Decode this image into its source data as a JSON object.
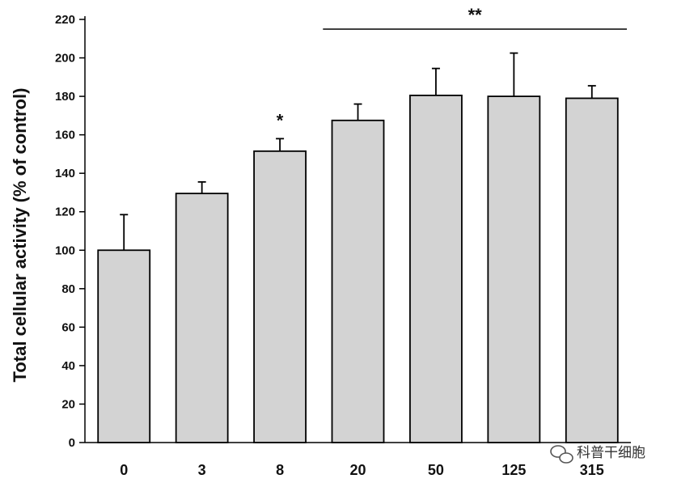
{
  "chart_data": {
    "type": "bar",
    "categories": [
      "0",
      "3",
      "8",
      "20",
      "50",
      "125",
      "315"
    ],
    "values": [
      100,
      129.5,
      151.5,
      167.5,
      180.5,
      180,
      179
    ],
    "errors": [
      18.5,
      6,
      6.5,
      8.5,
      14,
      22.5,
      6.5
    ],
    "ylabel": "Total cellular activity (% of control)",
    "xlabel": "",
    "ylim": [
      0,
      220
    ],
    "yticks": [
      0,
      20,
      40,
      60,
      80,
      100,
      120,
      140,
      160,
      180,
      200,
      220
    ],
    "grid": false,
    "bar_color": "#d3d3d3",
    "edge_color": "#000000",
    "annotations": [
      {
        "text": "*",
        "category": "8"
      },
      {
        "text": "**",
        "from_category": "20",
        "to_category": "315"
      }
    ]
  },
  "watermark": {
    "icon": "wechat-icon",
    "text": "科普干细胞"
  }
}
